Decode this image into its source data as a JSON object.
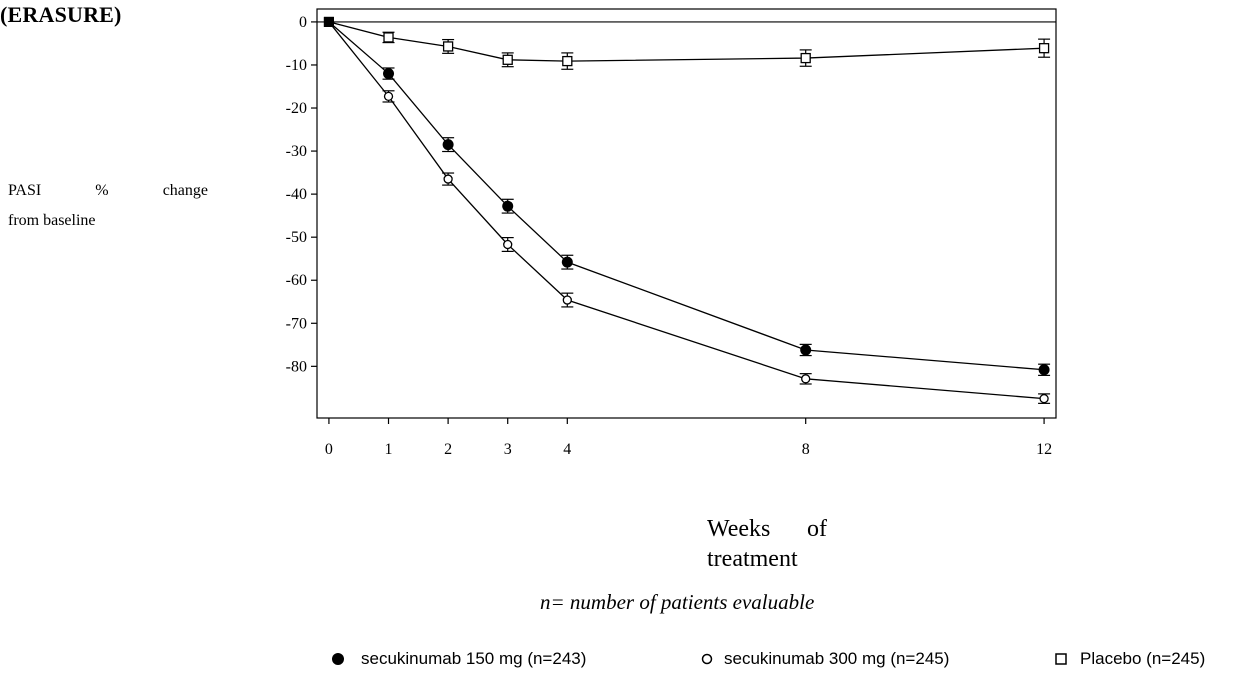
{
  "title": "(ERASURE)",
  "ylabel_line1": "PASI % change",
  "ylabel_line2": "from baseline",
  "xlabel_line1": "Weeks of",
  "xlabel_line2": "treatment",
  "note": "n= number of patients evaluable",
  "chart_data": {
    "type": "line",
    "title": "(ERASURE)",
    "xlabel": "Weeks of treatment",
    "ylabel": "PASI % change from baseline",
    "x_ticks": [
      0,
      1,
      2,
      3,
      4,
      8,
      12
    ],
    "y_ticks": [
      0,
      -10,
      -20,
      -30,
      -40,
      -50,
      -60,
      -70,
      -80
    ],
    "xlim": [
      -0.2,
      12.2
    ],
    "ylim": [
      -92,
      3
    ],
    "reference_line_y": 0,
    "grid": false,
    "legend_position": "bottom",
    "series": [
      {
        "name": "secukinumab 150 mg (n=243)",
        "marker": "filled-circle",
        "x": [
          0,
          1,
          2,
          3,
          4,
          8,
          12
        ],
        "y": [
          0,
          -12,
          -28.5,
          -42.8,
          -55.8,
          -76.2,
          -80.8
        ],
        "err": [
          0,
          1.3,
          1.6,
          1.6,
          1.6,
          1.3,
          1.3
        ]
      },
      {
        "name": "secukinumab 300 mg (n=245)",
        "marker": "open-circle",
        "x": [
          0,
          1,
          2,
          3,
          4,
          8,
          12
        ],
        "y": [
          0,
          -17.3,
          -36.5,
          -51.7,
          -64.6,
          -82.9,
          -87.5
        ],
        "err": [
          0,
          1.3,
          1.4,
          1.6,
          1.6,
          1.2,
          1.1
        ]
      },
      {
        "name": "Placebo (n=245)",
        "marker": "open-square",
        "x": [
          0,
          1,
          2,
          3,
          4,
          8,
          12
        ],
        "y": [
          0,
          -3.6,
          -5.7,
          -8.8,
          -9.1,
          -8.4,
          -6.1
        ],
        "err": [
          0,
          1.2,
          1.6,
          1.6,
          1.9,
          1.9,
          2.1
        ]
      }
    ]
  }
}
